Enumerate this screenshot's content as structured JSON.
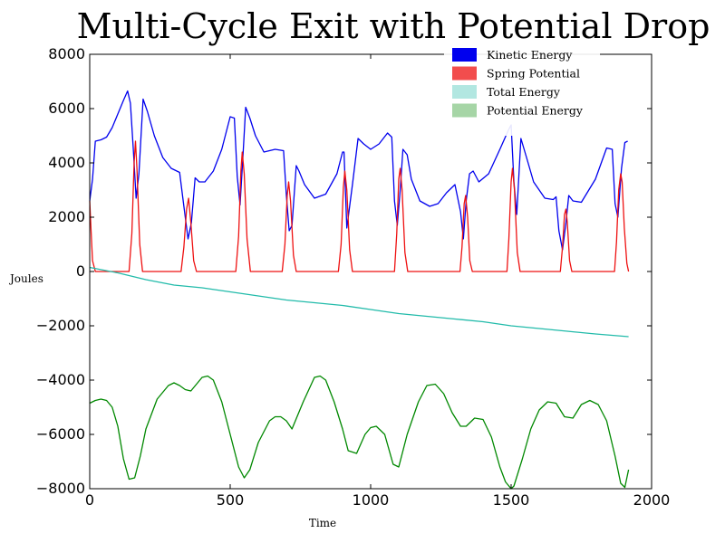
{
  "chart_data": {
    "type": "line",
    "title": "Multi-Cycle Exit with Potential Drop",
    "xlabel": "Time",
    "ylabel": "Joules",
    "xlim": [
      0,
      2000
    ],
    "ylim": [
      -8000,
      8000
    ],
    "xticks": [
      0,
      500,
      1000,
      1500,
      2000
    ],
    "yticks": [
      -8000,
      -6000,
      -4000,
      -2000,
      0,
      2000,
      4000,
      6000,
      8000
    ],
    "grid": false,
    "legend_placement": "top-right",
    "series": [
      {
        "name": "Kinetic Energy",
        "color": "#0000ee",
        "x": [
          0,
          10,
          20,
          40,
          60,
          80,
          100,
          120,
          135,
          145,
          155,
          165,
          175,
          190,
          205,
          230,
          260,
          290,
          310,
          320,
          335,
          350,
          362,
          375,
          390,
          410,
          440,
          470,
          500,
          515,
          525,
          535,
          545,
          555,
          570,
          590,
          620,
          660,
          690,
          700,
          710,
          720,
          735,
          745,
          765,
          800,
          840,
          880,
          900,
          905,
          915,
          935,
          955,
          975,
          1000,
          1030,
          1060,
          1075,
          1085,
          1095,
          1105,
          1115,
          1130,
          1145,
          1175,
          1210,
          1240,
          1270,
          1300,
          1320,
          1330,
          1340,
          1352,
          1365,
          1385,
          1420,
          1460,
          1490,
          1500,
          1510,
          1520,
          1535,
          1555,
          1580,
          1620,
          1650,
          1660,
          1670,
          1683,
          1695,
          1705,
          1720,
          1750,
          1800,
          1840,
          1860,
          1870,
          1880,
          1893,
          1905,
          1915
        ],
        "y": [
          2600,
          3400,
          4800,
          4850,
          4950,
          5300,
          5800,
          6300,
          6650,
          6200,
          4500,
          2700,
          3600,
          6350,
          5900,
          5000,
          4200,
          3800,
          3700,
          3650,
          2400,
          1200,
          1800,
          3450,
          3300,
          3300,
          3700,
          4500,
          5700,
          5650,
          3500,
          2450,
          4200,
          6050,
          5650,
          5000,
          4400,
          4500,
          4450,
          2800,
          1500,
          1700,
          3900,
          3700,
          3200,
          2700,
          2850,
          3600,
          4400,
          4400,
          1600,
          3200,
          4900,
          4700,
          4500,
          4700,
          5100,
          4950,
          2600,
          1700,
          3000,
          4500,
          4300,
          3400,
          2600,
          2400,
          2500,
          2900,
          3200,
          2200,
          1200,
          2600,
          3600,
          3700,
          3300,
          3600,
          4500,
          5200,
          5400,
          3300,
          2100,
          4900,
          4200,
          3300,
          2700,
          2650,
          2750,
          1500,
          800,
          1800,
          2800,
          2600,
          2550,
          3400,
          4550,
          4500,
          2500,
          2000,
          3800,
          4750,
          4800
        ]
      },
      {
        "name": "Spring Potential",
        "color": "#ee1111",
        "x": [
          0,
          5,
          10,
          20,
          140,
          150,
          158,
          163,
          168,
          178,
          188,
          325,
          335,
          345,
          352,
          360,
          370,
          380,
          520,
          530,
          538,
          543,
          550,
          560,
          572,
          685,
          695,
          703,
          708,
          715,
          725,
          735,
          885,
          895,
          903,
          908,
          915,
          925,
          935,
          1085,
          1093,
          1100,
          1105,
          1112,
          1122,
          1132,
          1318,
          1325,
          1333,
          1338,
          1345,
          1353,
          1362,
          1485,
          1492,
          1500,
          1505,
          1512,
          1522,
          1532,
          1675,
          1683,
          1690,
          1695,
          1700,
          1708,
          1716,
          1868,
          1875,
          1883,
          1890,
          1895,
          1903,
          1912,
          1918
        ],
        "y": [
          2600,
          1500,
          400,
          0,
          0,
          1400,
          4000,
          4800,
          3800,
          1000,
          0,
          0,
          900,
          2300,
          2700,
          1800,
          400,
          0,
          0,
          1300,
          3700,
          4400,
          3600,
          1200,
          0,
          0,
          1000,
          2800,
          3300,
          2600,
          600,
          0,
          0,
          1000,
          3100,
          3700,
          3000,
          800,
          0,
          0,
          1400,
          3400,
          3800,
          3000,
          700,
          0,
          0,
          900,
          2500,
          2800,
          2000,
          400,
          0,
          0,
          1200,
          3300,
          3800,
          3000,
          700,
          0,
          0,
          900,
          2100,
          2300,
          1800,
          400,
          0,
          0,
          1100,
          3000,
          3600,
          3300,
          1600,
          300,
          0
        ]
      },
      {
        "name": "Total Energy",
        "color": "#22bbaa",
        "x": [
          0,
          100,
          200,
          300,
          400,
          500,
          600,
          700,
          800,
          900,
          1000,
          1100,
          1200,
          1300,
          1400,
          1500,
          1600,
          1700,
          1800,
          1918
        ],
        "y": [
          150,
          -50,
          -300,
          -500,
          -600,
          -750,
          -900,
          -1050,
          -1150,
          -1250,
          -1400,
          -1550,
          -1650,
          -1750,
          -1850,
          -2000,
          -2100,
          -2200,
          -2300,
          -2400
        ]
      },
      {
        "name": "Potential Energy",
        "color": "#008800",
        "x": [
          0,
          20,
          40,
          60,
          80,
          100,
          120,
          140,
          160,
          180,
          200,
          240,
          280,
          300,
          320,
          340,
          360,
          380,
          400,
          420,
          440,
          470,
          500,
          530,
          550,
          570,
          600,
          640,
          660,
          680,
          700,
          720,
          760,
          800,
          820,
          840,
          870,
          900,
          920,
          950,
          980,
          1000,
          1020,
          1050,
          1080,
          1100,
          1130,
          1170,
          1200,
          1230,
          1260,
          1290,
          1320,
          1340,
          1370,
          1400,
          1430,
          1460,
          1480,
          1500,
          1510,
          1540,
          1570,
          1600,
          1630,
          1660,
          1690,
          1720,
          1750,
          1780,
          1810,
          1840,
          1870,
          1890,
          1905,
          1918
        ],
        "y": [
          -4850,
          -4750,
          -4700,
          -4750,
          -5000,
          -5700,
          -6900,
          -7650,
          -7600,
          -6800,
          -5800,
          -4700,
          -4200,
          -4100,
          -4200,
          -4350,
          -4400,
          -4150,
          -3900,
          -3850,
          -4000,
          -4800,
          -6000,
          -7200,
          -7600,
          -7300,
          -6300,
          -5500,
          -5350,
          -5350,
          -5500,
          -5800,
          -4800,
          -3900,
          -3850,
          -4000,
          -4800,
          -5800,
          -6600,
          -6700,
          -6000,
          -5750,
          -5700,
          -6000,
          -7100,
          -7200,
          -6000,
          -4800,
          -4200,
          -4150,
          -4500,
          -5200,
          -5700,
          -5700,
          -5400,
          -5450,
          -6100,
          -7200,
          -7750,
          -8000,
          -7900,
          -6900,
          -5800,
          -5100,
          -4800,
          -4850,
          -5350,
          -5400,
          -4900,
          -4750,
          -4900,
          -5500,
          -6800,
          -7800,
          -7950,
          -7300
        ]
      }
    ]
  }
}
